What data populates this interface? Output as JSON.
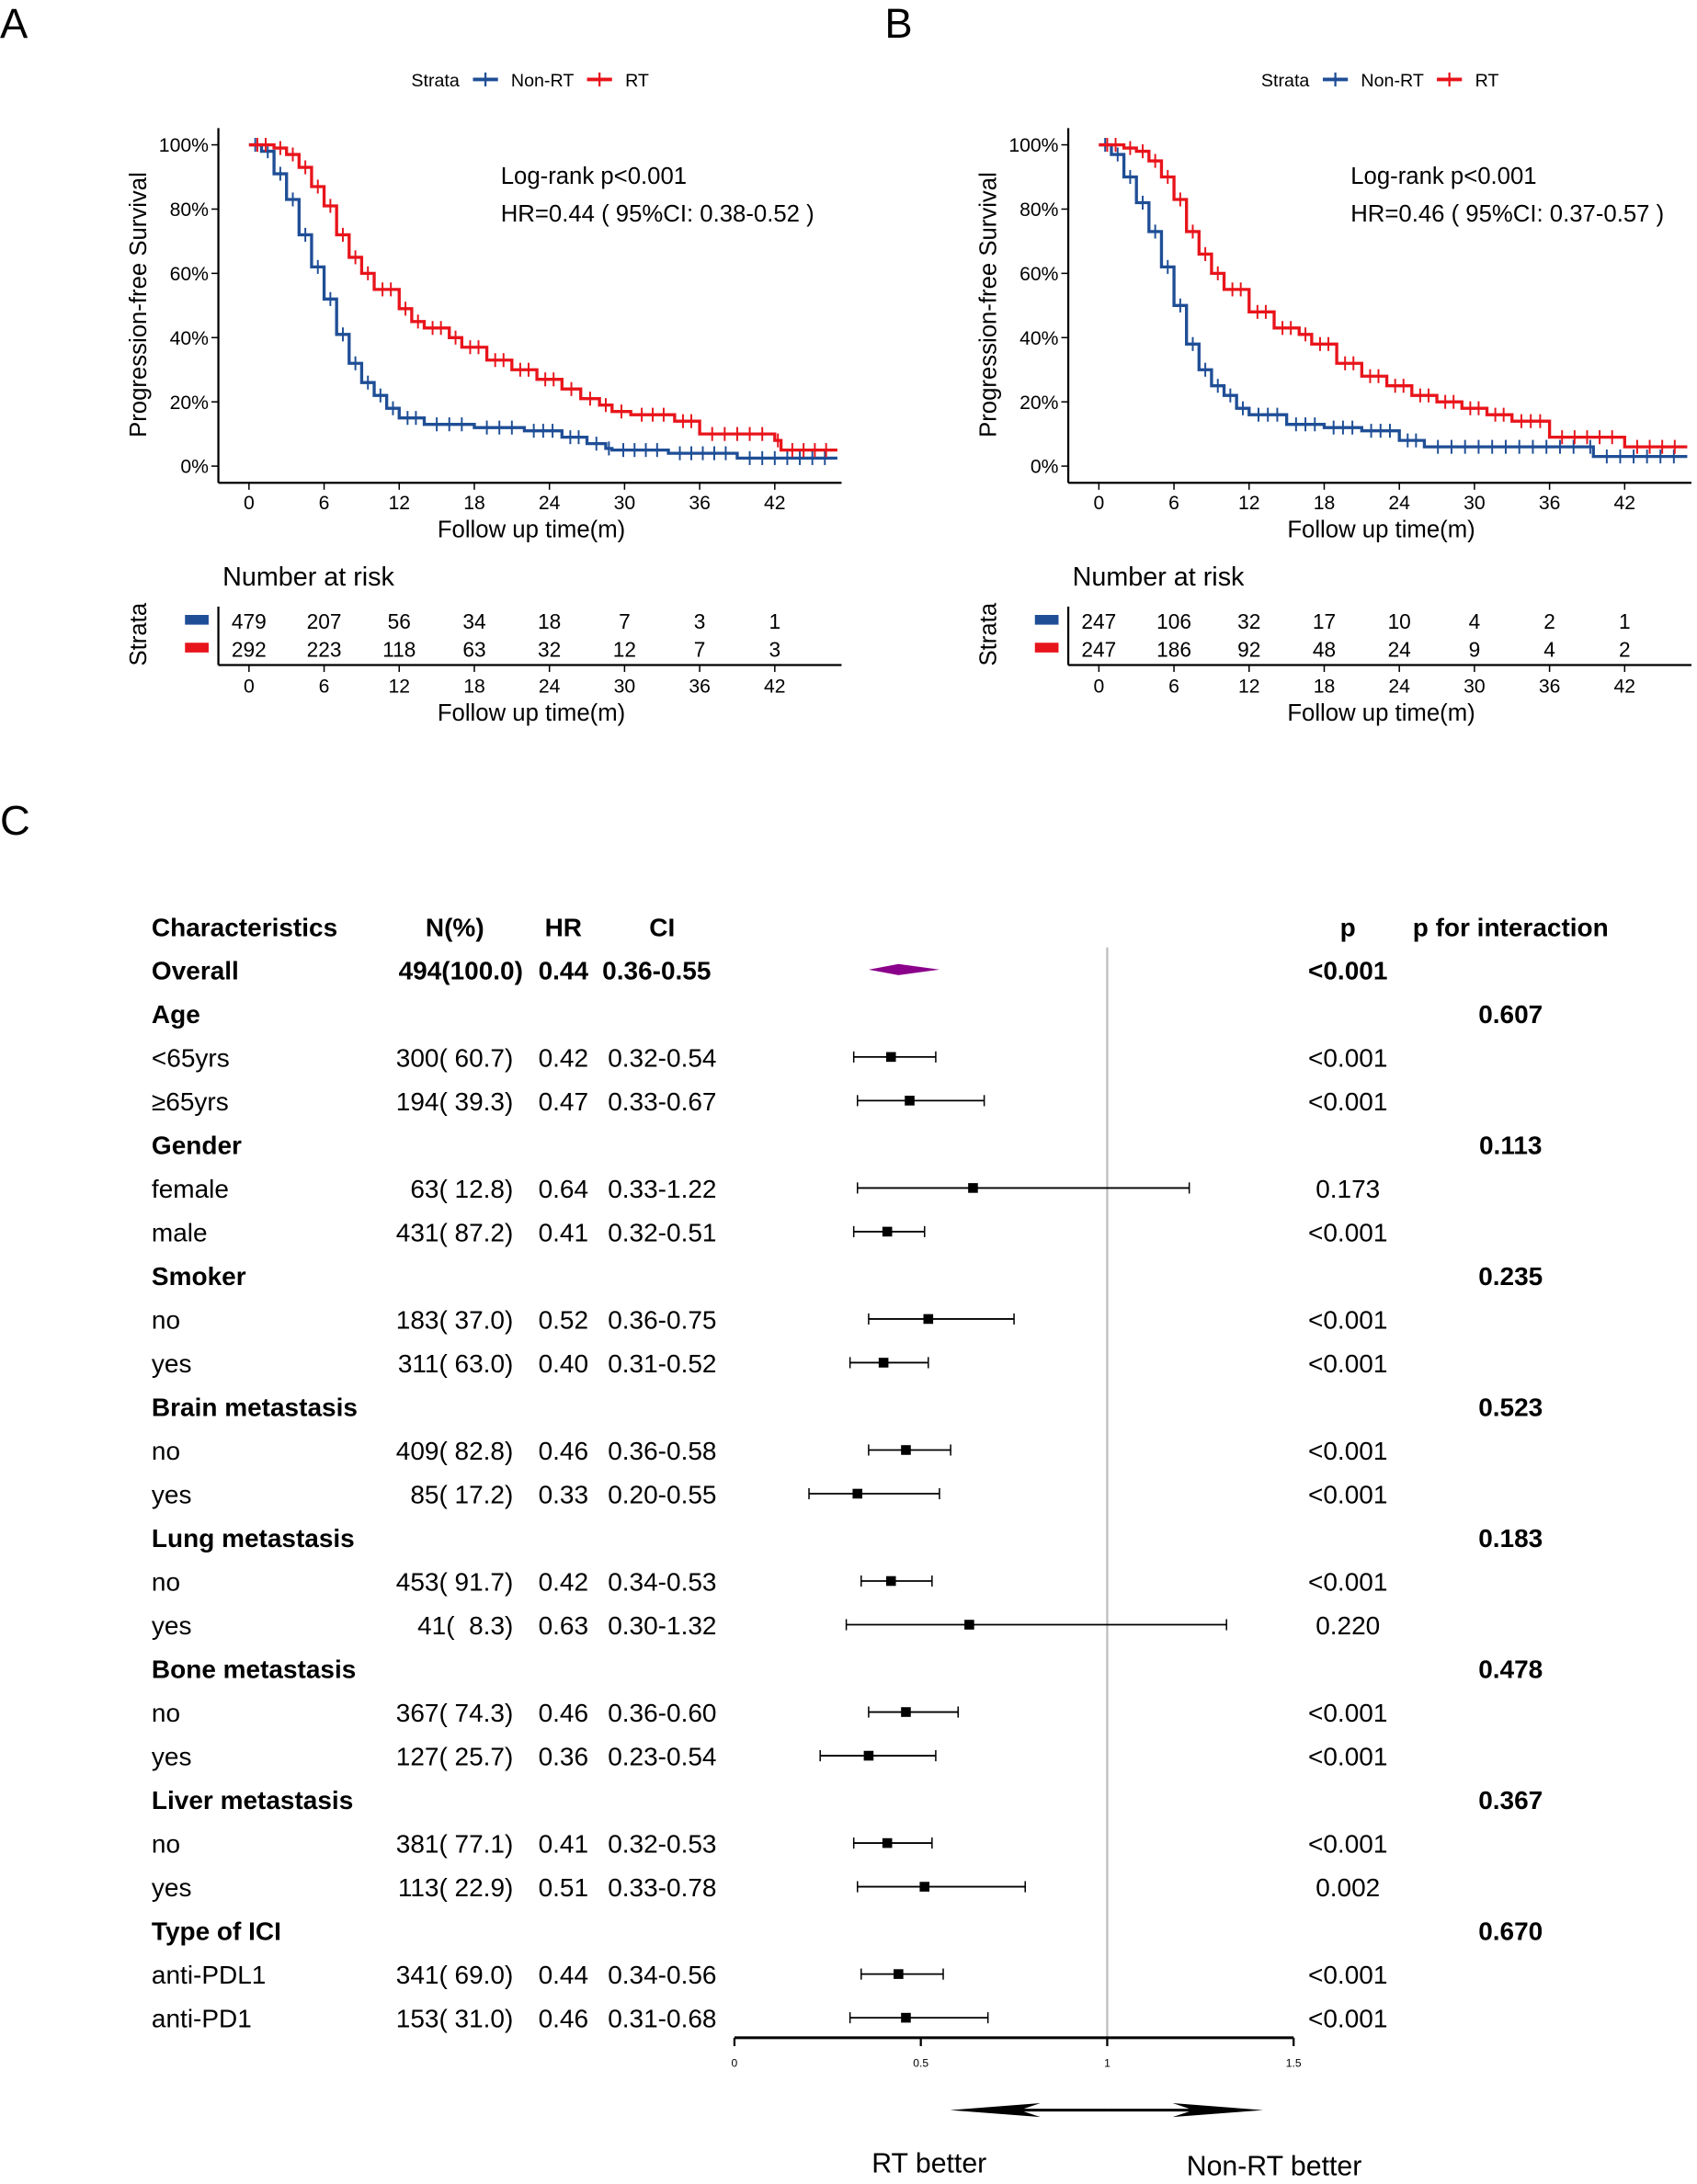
{
  "panel_labels": [
    "A",
    "B",
    "C"
  ],
  "colors": {
    "non_rt": "#1F4E96",
    "rt": "#E8141B",
    "overall": "#8B008B",
    "refline": "#BEBEBE"
  },
  "chart_data": [
    {
      "type": "line",
      "panel": "A",
      "legend_title": "Strata",
      "legend": [
        "Non-RT",
        "RT"
      ],
      "legend_placement": "top",
      "ylabel": "Progression-free Survival",
      "xlabel": "Follow up time(m)",
      "xticks": [
        "0",
        "6",
        "12",
        "18",
        "24",
        "30",
        "36",
        "42"
      ],
      "yticks": [
        "0%",
        "20%",
        "40%",
        "60%",
        "80%",
        "100%"
      ],
      "xlim": [
        0,
        47
      ],
      "ylim": [
        0,
        100
      ],
      "annotation": [
        "Log-rank p<0.001",
        "HR=0.44 ( 95%CI: 0.38-0.52 )"
      ],
      "series": [
        {
          "name": "Non-RT",
          "points": [
            [
              0,
              100
            ],
            [
              1,
              98
            ],
            [
              2,
              91
            ],
            [
              3,
              83
            ],
            [
              4,
              72
            ],
            [
              5,
              62
            ],
            [
              6,
              52
            ],
            [
              7,
              41
            ],
            [
              8,
              32
            ],
            [
              9,
              26
            ],
            [
              10,
              22
            ],
            [
              11,
              18
            ],
            [
              12,
              15
            ],
            [
              14,
              13
            ],
            [
              18,
              12
            ],
            [
              22,
              11
            ],
            [
              25,
              9
            ],
            [
              27,
              7
            ],
            [
              28.5,
              5.5
            ],
            [
              29,
              5
            ],
            [
              33.5,
              4
            ],
            [
              39,
              2.5
            ],
            [
              47,
              2.5
            ]
          ]
        },
        {
          "name": "RT",
          "points": [
            [
              0,
              100
            ],
            [
              2,
              99
            ],
            [
              3,
              97
            ],
            [
              4,
              93
            ],
            [
              5,
              87
            ],
            [
              6,
              81
            ],
            [
              7,
              72
            ],
            [
              8,
              65
            ],
            [
              9,
              60
            ],
            [
              10,
              55
            ],
            [
              12,
              49
            ],
            [
              13,
              45
            ],
            [
              14,
              43
            ],
            [
              16,
              40
            ],
            [
              17,
              37
            ],
            [
              19,
              33
            ],
            [
              21,
              30
            ],
            [
              23,
              27
            ],
            [
              25,
              24
            ],
            [
              26.5,
              21
            ],
            [
              28,
              19
            ],
            [
              29,
              17
            ],
            [
              30.5,
              16
            ],
            [
              34,
              14
            ],
            [
              36,
              10
            ],
            [
              42,
              8
            ],
            [
              42.5,
              5
            ],
            [
              47,
              5
            ]
          ]
        }
      ],
      "risk_table": {
        "title": "Number at risk",
        "strata_label": "Strata",
        "rows": [
          {
            "name": "Non-RT",
            "values": [
              "479",
              "207",
              "56",
              "34",
              "18",
              "7",
              "3",
              "1"
            ]
          },
          {
            "name": "RT",
            "values": [
              "292",
              "223",
              "118",
              "63",
              "32",
              "12",
              "7",
              "3"
            ]
          }
        ]
      }
    },
    {
      "type": "line",
      "panel": "B",
      "legend_title": "Strata",
      "legend": [
        "Non-RT",
        "RT"
      ],
      "legend_placement": "top",
      "ylabel": "Progression-free Survival",
      "xlabel": "Follow up time(m)",
      "xticks": [
        "0",
        "6",
        "12",
        "18",
        "24",
        "30",
        "36",
        "42"
      ],
      "yticks": [
        "0%",
        "20%",
        "40%",
        "60%",
        "80%",
        "100%"
      ],
      "xlim": [
        0,
        47
      ],
      "ylim": [
        0,
        100
      ],
      "annotation": [
        "Log-rank p<0.001",
        "HR=0.46 ( 95%CI: 0.37-0.57 )"
      ],
      "series": [
        {
          "name": "Non-RT",
          "points": [
            [
              0,
              100
            ],
            [
              1,
              97
            ],
            [
              2,
              90
            ],
            [
              3,
              82
            ],
            [
              4,
              73
            ],
            [
              5,
              62
            ],
            [
              6,
              50
            ],
            [
              7,
              38
            ],
            [
              8,
              30
            ],
            [
              9,
              25
            ],
            [
              10,
              22
            ],
            [
              11,
              18
            ],
            [
              12,
              16
            ],
            [
              15,
              13
            ],
            [
              18,
              12
            ],
            [
              21,
              11
            ],
            [
              24,
              8
            ],
            [
              26,
              6
            ],
            [
              39,
              6
            ],
            [
              39.5,
              3
            ],
            [
              47,
              3
            ]
          ]
        },
        {
          "name": "RT",
          "points": [
            [
              0,
              100
            ],
            [
              2,
              99
            ],
            [
              3,
              98
            ],
            [
              4,
              95
            ],
            [
              5,
              90
            ],
            [
              6,
              83
            ],
            [
              7,
              73
            ],
            [
              8,
              66
            ],
            [
              9,
              60
            ],
            [
              10,
              55
            ],
            [
              12,
              48
            ],
            [
              14,
              43
            ],
            [
              16,
              41
            ],
            [
              17,
              38
            ],
            [
              19,
              32
            ],
            [
              21,
              28
            ],
            [
              23,
              25
            ],
            [
              25,
              22
            ],
            [
              27,
              20
            ],
            [
              29,
              18
            ],
            [
              31,
              16
            ],
            [
              33,
              14
            ],
            [
              36,
              9
            ],
            [
              42,
              6
            ],
            [
              47,
              6
            ]
          ]
        }
      ],
      "risk_table": {
        "title": "Number at risk",
        "strata_label": "Strata",
        "rows": [
          {
            "name": "Non-RT",
            "values": [
              "247",
              "106",
              "32",
              "17",
              "10",
              "4",
              "2",
              "1"
            ]
          },
          {
            "name": "RT",
            "values": [
              "247",
              "186",
              "92",
              "48",
              "24",
              "9",
              "4",
              "2"
            ]
          }
        ]
      }
    },
    {
      "type": "forest",
      "panel": "C",
      "headers": {
        "label": "Characteristics",
        "n": "N(%)",
        "hr": "HR",
        "ci": "CI",
        "p": "p",
        "pint": "p for interaction"
      },
      "xticks": [
        "0",
        "0.5",
        "1",
        "1.5"
      ],
      "xlim": [
        0,
        1.5
      ],
      "reference": 1,
      "direction_labels": [
        "RT better",
        "Non-RT better"
      ],
      "rows": [
        {
          "kind": "overall",
          "label": "Overall",
          "n": "494(100.0)",
          "hr": "0.44",
          "ci": "0.36-0.55",
          "est": 0.44,
          "lo": 0.36,
          "hi": 0.55,
          "p": "<0.001",
          "pint": ""
        },
        {
          "kind": "group",
          "label": "Age",
          "pint": "0.607"
        },
        {
          "kind": "sub",
          "label": "<65yrs",
          "n": "300( 60.7)",
          "hr": "0.42",
          "ci": "0.32-0.54",
          "est": 0.42,
          "lo": 0.32,
          "hi": 0.54,
          "p": "<0.001"
        },
        {
          "kind": "sub",
          "label": "≥65yrs",
          "n": "194( 39.3)",
          "hr": "0.47",
          "ci": "0.33-0.67",
          "est": 0.47,
          "lo": 0.33,
          "hi": 0.67,
          "p": "<0.001"
        },
        {
          "kind": "group",
          "label": "Gender",
          "pint": "0.113"
        },
        {
          "kind": "sub",
          "label": "female",
          "n": "63( 12.8)",
          "hr": "0.64",
          "ci": "0.33-1.22",
          "est": 0.64,
          "lo": 0.33,
          "hi": 1.22,
          "p": "0.173"
        },
        {
          "kind": "sub",
          "label": "male",
          "n": "431( 87.2)",
          "hr": "0.41",
          "ci": "0.32-0.51",
          "est": 0.41,
          "lo": 0.32,
          "hi": 0.51,
          "p": "<0.001"
        },
        {
          "kind": "group",
          "label": "Smoker",
          "pint": "0.235"
        },
        {
          "kind": "sub",
          "label": "no",
          "n": "183( 37.0)",
          "hr": "0.52",
          "ci": "0.36-0.75",
          "est": 0.52,
          "lo": 0.36,
          "hi": 0.75,
          "p": "<0.001"
        },
        {
          "kind": "sub",
          "label": "yes",
          "n": "311( 63.0)",
          "hr": "0.40",
          "ci": "0.31-0.52",
          "est": 0.4,
          "lo": 0.31,
          "hi": 0.52,
          "p": "<0.001"
        },
        {
          "kind": "group",
          "label": "Brain metastasis",
          "pint": "0.523"
        },
        {
          "kind": "sub",
          "label": "no",
          "n": "409( 82.8)",
          "hr": "0.46",
          "ci": "0.36-0.58",
          "est": 0.46,
          "lo": 0.36,
          "hi": 0.58,
          "p": "<0.001"
        },
        {
          "kind": "sub",
          "label": "yes",
          "n": "85( 17.2)",
          "hr": "0.33",
          "ci": "0.20-0.55",
          "est": 0.33,
          "lo": 0.2,
          "hi": 0.55,
          "p": "<0.001"
        },
        {
          "kind": "group",
          "label": "Lung metastasis",
          "pint": "0.183"
        },
        {
          "kind": "sub",
          "label": "no",
          "n": "453( 91.7)",
          "hr": "0.42",
          "ci": "0.34-0.53",
          "est": 0.42,
          "lo": 0.34,
          "hi": 0.53,
          "p": "<0.001"
        },
        {
          "kind": "sub",
          "label": "yes",
          "n": "41(  8.3)",
          "hr": "0.63",
          "ci": "0.30-1.32",
          "est": 0.63,
          "lo": 0.3,
          "hi": 1.32,
          "p": "0.220"
        },
        {
          "kind": "group",
          "label": "Bone metastasis",
          "pint": "0.478"
        },
        {
          "kind": "sub",
          "label": "no",
          "n": "367( 74.3)",
          "hr": "0.46",
          "ci": "0.36-0.60",
          "est": 0.46,
          "lo": 0.36,
          "hi": 0.6,
          "p": "<0.001"
        },
        {
          "kind": "sub",
          "label": "yes",
          "n": "127( 25.7)",
          "hr": "0.36",
          "ci": "0.23-0.54",
          "est": 0.36,
          "lo": 0.23,
          "hi": 0.54,
          "p": "<0.001"
        },
        {
          "kind": "group",
          "label": "Liver metastasis",
          "pint": "0.367"
        },
        {
          "kind": "sub",
          "label": "no",
          "n": "381( 77.1)",
          "hr": "0.41",
          "ci": "0.32-0.53",
          "est": 0.41,
          "lo": 0.32,
          "hi": 0.53,
          "p": "<0.001"
        },
        {
          "kind": "sub",
          "label": "yes",
          "n": "113( 22.9)",
          "hr": "0.51",
          "ci": "0.33-0.78",
          "est": 0.51,
          "lo": 0.33,
          "hi": 0.78,
          "p": "0.002"
        },
        {
          "kind": "group",
          "label": "Type of ICI",
          "pint": "0.670"
        },
        {
          "kind": "sub",
          "label": "anti-PDL1",
          "n": "341( 69.0)",
          "hr": "0.44",
          "ci": "0.34-0.56",
          "est": 0.44,
          "lo": 0.34,
          "hi": 0.56,
          "p": "<0.001"
        },
        {
          "kind": "sub",
          "label": "anti-PD1",
          "n": "153( 31.0)",
          "hr": "0.46",
          "ci": "0.31-0.68",
          "est": 0.46,
          "lo": 0.31,
          "hi": 0.68,
          "p": "<0.001"
        }
      ]
    }
  ]
}
